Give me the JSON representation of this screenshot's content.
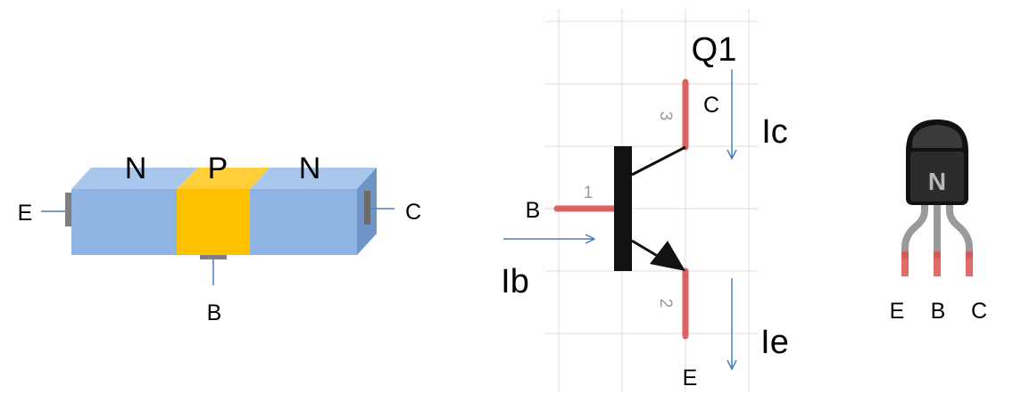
{
  "colors": {
    "n_region": "#8fb4e3",
    "n_region_top": "#a9c6ec",
    "p_region": "#ffc000",
    "p_region_top": "#ffcf3a",
    "arrow": "#4a7ebb",
    "pin_red": "#d9534f",
    "grid": "#dcdcdc",
    "body_black": "#111111"
  },
  "junction": {
    "left_region": "N",
    "middle_region": "P",
    "right_region": "N",
    "emitter_label": "E",
    "base_label": "B",
    "collector_label": "C"
  },
  "schematic": {
    "ref": "Q1",
    "pin1": "1",
    "pin2": "2",
    "pin3": "3",
    "collector_label": "C",
    "base_label": "B",
    "emitter_label": "E",
    "ic_label": "Ic",
    "ib_label": "Ib",
    "ie_label": "Ie"
  },
  "package": {
    "type_mark": "N",
    "left_pin": "E",
    "middle_pin": "B",
    "right_pin": "C"
  }
}
